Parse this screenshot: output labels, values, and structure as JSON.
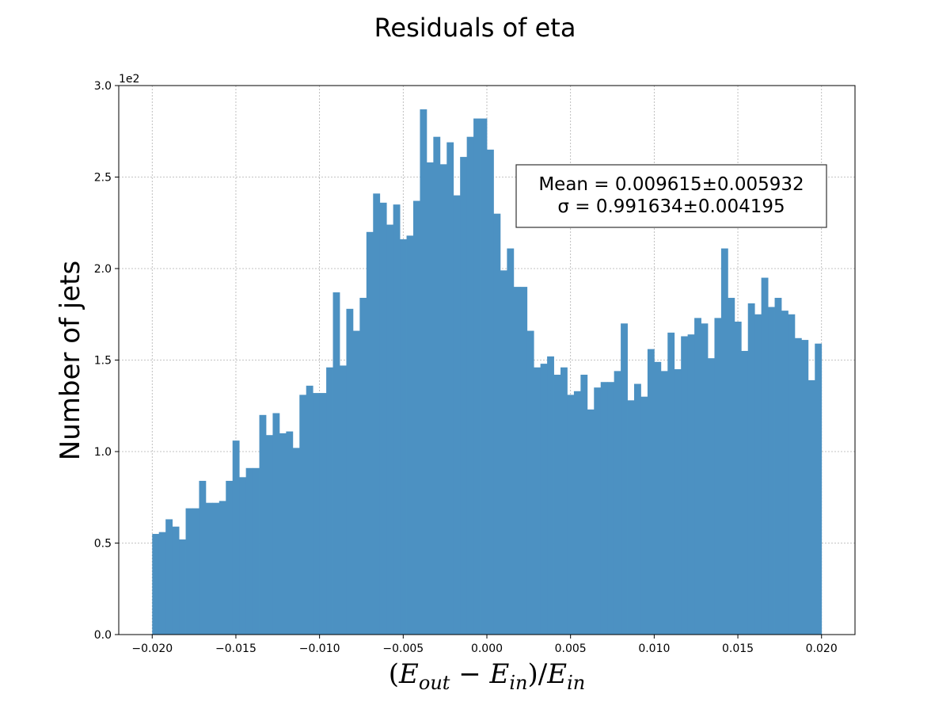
{
  "chart_data": {
    "type": "bar",
    "title": "Residuals of eta",
    "xlabel": "(E_out − E_in)/E_in",
    "xlabel_parts": {
      "open": "(",
      "E1": "E",
      "sub1": "out",
      "minus": " − ",
      "E2": "E",
      "sub2": "in",
      "close_slash": ")/",
      "E3": "E",
      "sub3": "in"
    },
    "ylabel": "Number of jets",
    "y_offset_label": "1e2",
    "xlim": [
      -0.022,
      0.022
    ],
    "ylim": [
      0,
      3.0
    ],
    "x_ticks": [
      -0.02,
      -0.015,
      -0.01,
      -0.005,
      0.0,
      0.005,
      0.01,
      0.015,
      0.02
    ],
    "x_tick_labels": [
      "−0.020",
      "−0.015",
      "−0.010",
      "−0.005",
      "0.000",
      "0.005",
      "0.010",
      "0.015",
      "0.020"
    ],
    "y_ticks": [
      0,
      0.5,
      1.0,
      1.5,
      2.0,
      2.5,
      3.0
    ],
    "y_tick_labels": [
      "0.0",
      "0.5",
      "1.0",
      "1.5",
      "2.0",
      "2.5",
      "3.0"
    ],
    "grid": true,
    "bin_range": [
      -0.02,
      0.02
    ],
    "values": [
      0.55,
      0.56,
      0.63,
      0.59,
      0.52,
      0.69,
      0.69,
      0.84,
      0.72,
      0.72,
      0.73,
      0.84,
      1.06,
      0.86,
      0.91,
      0.91,
      1.2,
      1.09,
      1.21,
      1.1,
      1.11,
      1.02,
      1.31,
      1.36,
      1.32,
      1.32,
      1.46,
      1.87,
      1.47,
      1.78,
      1.66,
      1.84,
      2.2,
      2.41,
      2.36,
      2.24,
      2.35,
      2.16,
      2.18,
      2.37,
      2.87,
      2.58,
      2.72,
      2.57,
      2.69,
      2.4,
      2.61,
      2.72,
      2.82,
      2.82,
      2.65,
      2.3,
      1.99,
      2.11,
      1.9,
      1.9,
      1.66,
      1.46,
      1.48,
      1.52,
      1.42,
      1.46,
      1.31,
      1.33,
      1.42,
      1.23,
      1.35,
      1.38,
      1.38,
      1.44,
      1.7,
      1.28,
      1.37,
      1.3,
      1.56,
      1.49,
      1.44,
      1.65,
      1.45,
      1.63,
      1.64,
      1.73,
      1.7,
      1.51,
      1.73,
      2.11,
      1.84,
      1.71,
      1.55,
      1.81,
      1.75,
      1.95,
      1.79,
      1.84,
      1.77,
      1.75,
      1.62,
      1.61,
      1.39,
      1.59
    ],
    "bar_color": "#4c91c2",
    "annotation": {
      "line1": "Mean = 0.009615±0.005932",
      "line2": "σ = 0.991634±0.004195"
    }
  }
}
